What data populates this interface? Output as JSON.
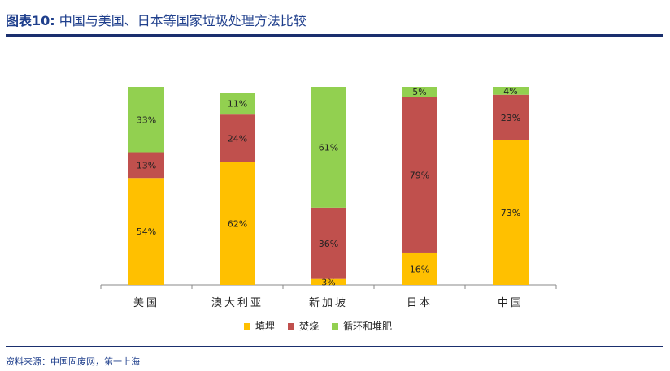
{
  "header": {
    "figure_label": "图表10:",
    "title_text": "中国与美国、日本等国家垃圾处理方法比较"
  },
  "source": "资料来源：中国固废网，第一上海",
  "colors": {
    "landfill": "#ffc000",
    "incineration": "#c0504d",
    "recycling": "#92d050",
    "rule": "#1a2f6e",
    "title": "#1f3f8c"
  },
  "chart_data": {
    "type": "bar",
    "stacked": true,
    "categories": [
      "美国",
      "澳大利亚",
      "新加坡",
      "日本",
      "中国"
    ],
    "series": [
      {
        "name": "填埋",
        "values": [
          54,
          62,
          3,
          16,
          73
        ]
      },
      {
        "name": "焚烧",
        "values": [
          13,
          24,
          36,
          79,
          23
        ]
      },
      {
        "name": "循环和堆肥",
        "values": [
          33,
          11,
          61,
          5,
          4
        ]
      }
    ],
    "value_format": "percent",
    "ylim": [
      0,
      100
    ],
    "legend_position": "bottom",
    "grid": false
  }
}
